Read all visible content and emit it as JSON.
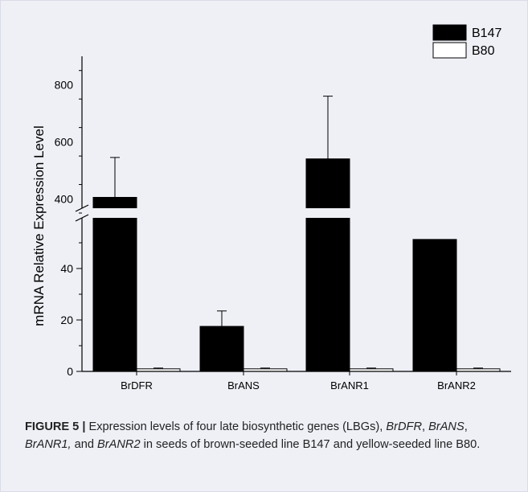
{
  "chart_data": {
    "type": "bar",
    "categories": [
      "BrDFR",
      "BrANS",
      "BrANR1",
      "BrANR2"
    ],
    "series": [
      {
        "name": "B147",
        "values": [
          405,
          17.5,
          540,
          51.3
        ],
        "errors": [
          140,
          6,
          220,
          0
        ],
        "color": "#000000"
      },
      {
        "name": "B80",
        "values": [
          1,
          1,
          1,
          1
        ],
        "errors": [
          0.3,
          0.3,
          0.3,
          0.3
        ],
        "color": "#ffffff"
      }
    ],
    "ylabel": "mRNA Relative Expression Level",
    "y_axis_break": {
      "lower": {
        "range": [
          0,
          55
        ],
        "ticks": [
          0,
          20,
          40
        ]
      },
      "upper": {
        "range": [
          350,
          900
        ],
        "ticks": [
          400,
          600,
          800
        ]
      }
    },
    "legend_position": "top-right",
    "grid": false
  },
  "caption": {
    "label": "FIGURE 5 |",
    "text_1": " Expression levels of four late biosynthetic genes (LBGs), ",
    "gene_1": "BrDFR",
    "sep_1": ", ",
    "gene_2": "BrANS",
    "sep_2": ", ",
    "gene_3": "BrANR1,",
    "sep_3": " and ",
    "gene_4": "BrANR2",
    "text_2": " in seeds of brown-seeded line B147 and yellow-seeded line B80."
  }
}
